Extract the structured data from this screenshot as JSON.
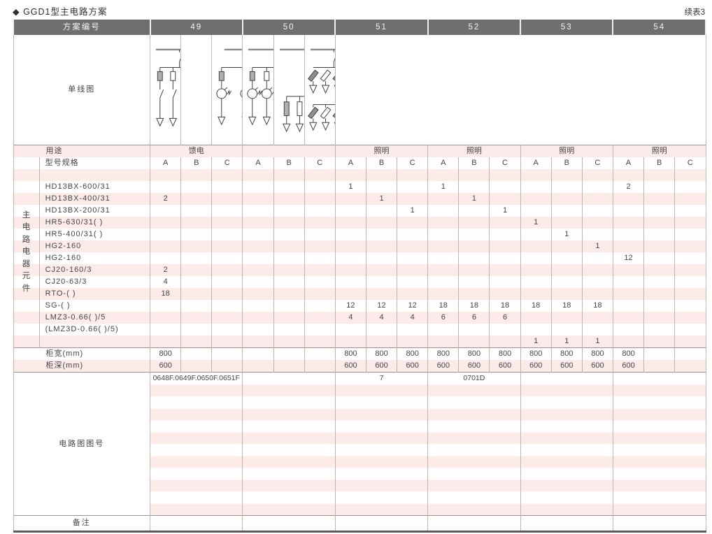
{
  "page": {
    "title": "◆ GGD1型主电路方案",
    "continuation": "续表3"
  },
  "table": {
    "scheme_header_label": "方案编号",
    "schemes": [
      "49",
      "50",
      "51",
      "52",
      "53",
      "54"
    ],
    "diagram_row_label": "单线图",
    "usage_label": "用途",
    "usage_values": [
      "馈电",
      "",
      "照明",
      "照明",
      "照明",
      "照明"
    ],
    "model_spec_label": "型号规格",
    "component_group_label": "主电路电器元件",
    "subcolumns": [
      "A",
      "B",
      "C"
    ],
    "component_rows": [
      {
        "name": "",
        "values": [
          "",
          "",
          "",
          "",
          "",
          "",
          "",
          "",
          "",
          "",
          "",
          "",
          "",
          "",
          "",
          "",
          "",
          ""
        ]
      },
      {
        "name": "HD13BX-600/31",
        "values": [
          "",
          "",
          "",
          "",
          "",
          "",
          "1",
          "",
          "",
          "1",
          "",
          "",
          "",
          "",
          "",
          "2",
          "",
          ""
        ]
      },
      {
        "name": "HD13BX-400/31",
        "values": [
          "2",
          "",
          "",
          "",
          "",
          "",
          "",
          "1",
          "",
          "",
          "1",
          "",
          "",
          "",
          "",
          "",
          "",
          ""
        ]
      },
      {
        "name": "HD13BX-200/31",
        "values": [
          "",
          "",
          "",
          "",
          "",
          "",
          "",
          "",
          "1",
          "",
          "",
          "1",
          "",
          "",
          "",
          "",
          "",
          ""
        ]
      },
      {
        "name": "HR5-630/31( )",
        "values": [
          "",
          "",
          "",
          "",
          "",
          "",
          "",
          "",
          "",
          "",
          "",
          "",
          "1",
          "",
          "",
          "",
          "",
          ""
        ]
      },
      {
        "name": "HR5-400/31( )",
        "values": [
          "",
          "",
          "",
          "",
          "",
          "",
          "",
          "",
          "",
          "",
          "",
          "",
          "",
          "1",
          "",
          "",
          "",
          ""
        ]
      },
      {
        "name": "HG2-160",
        "values": [
          "",
          "",
          "",
          "",
          "",
          "",
          "",
          "",
          "",
          "",
          "",
          "",
          "",
          "",
          "1",
          "",
          "",
          ""
        ]
      },
      {
        "name": "HG2-160",
        "values": [
          "",
          "",
          "",
          "",
          "",
          "",
          "",
          "",
          "",
          "",
          "",
          "",
          "",
          "",
          "",
          "12",
          "",
          ""
        ]
      },
      {
        "name": "CJ20-160/3",
        "values": [
          "2",
          "",
          "",
          "",
          "",
          "",
          "",
          "",
          "",
          "",
          "",
          "",
          "",
          "",
          "",
          "",
          "",
          ""
        ]
      },
      {
        "name": "CJ20-63/3",
        "values": [
          "4",
          "",
          "",
          "",
          "",
          "",
          "",
          "",
          "",
          "",
          "",
          "",
          "",
          "",
          "",
          "",
          "",
          ""
        ]
      },
      {
        "name": "RTO-( )",
        "values": [
          "18",
          "",
          "",
          "",
          "",
          "",
          "",
          "",
          "",
          "",
          "",
          "",
          "",
          "",
          "",
          "",
          "",
          ""
        ]
      },
      {
        "name": "SG-( )",
        "values": [
          "",
          "",
          "",
          "",
          "",
          "",
          "12",
          "12",
          "12",
          "18",
          "18",
          "18",
          "18",
          "18",
          "18",
          "",
          "",
          ""
        ]
      },
      {
        "name": "LMZ3-0.66( )/5",
        "values": [
          "",
          "",
          "",
          "",
          "",
          "",
          "4",
          "4",
          "4",
          "6",
          "6",
          "6",
          "",
          "",
          "",
          "",
          "",
          ""
        ]
      },
      {
        "name": "(LMZ3D-0.66( )/5)",
        "values": [
          "",
          "",
          "",
          "",
          "",
          "",
          "",
          "",
          "",
          "",
          "",
          "",
          "",
          "",
          "",
          "",
          "",
          ""
        ]
      },
      {
        "name": "",
        "values": [
          "",
          "",
          "",
          "",
          "",
          "",
          "",
          "",
          "",
          "",
          "",
          "",
          "1",
          "1",
          "1",
          "",
          "",
          ""
        ]
      }
    ],
    "cabinet_width": {
      "label": "柜宽(mm)",
      "values": [
        "800",
        "",
        "",
        "",
        "",
        "",
        "800",
        "800",
        "800",
        "800",
        "800",
        "800",
        "800",
        "800",
        "800",
        "800",
        "",
        ""
      ]
    },
    "cabinet_depth": {
      "label": "柜深(mm)",
      "values": [
        "600",
        "",
        "",
        "",
        "",
        "",
        "600",
        "600",
        "600",
        "600",
        "600",
        "600",
        "600",
        "600",
        "600",
        "600",
        "",
        ""
      ]
    },
    "drawing_numbers": {
      "label": "电路图图号",
      "values": [
        "0648F.0649F.0650F.0651F",
        "",
        "7",
        "0701D",
        "",
        ""
      ]
    },
    "remarks": {
      "label": "备注",
      "values": [
        "",
        "",
        "",
        "",
        "",
        ""
      ]
    },
    "diagrams": [
      {
        "scheme": "49",
        "feeders": 6,
        "groups": [
          4,
          2
        ],
        "tap": "switch",
        "branch_components": [
          "fuse",
          "switch",
          "arrow"
        ]
      },
      {
        "scheme": "50",
        "feeders": 0,
        "groups": [],
        "tap": "",
        "branch_components": []
      },
      {
        "scheme": "51",
        "feeders": 4,
        "groups": [
          4
        ],
        "tap": "switch",
        "branch_components": [
          "fuse",
          "meter",
          "arrow"
        ]
      },
      {
        "scheme": "52",
        "feeders": 6,
        "groups": [
          6
        ],
        "tap": "switch",
        "branch_components": [
          "fuse",
          "meter",
          "arrow"
        ]
      },
      {
        "scheme": "53",
        "feeders": 6,
        "groups": [
          6
        ],
        "tap": "fuse-switch+transformer",
        "branch_components": [
          "fuse",
          "arrow"
        ]
      },
      {
        "scheme": "54",
        "feeders": 12,
        "groups": [
          6,
          6
        ],
        "tap": "switch",
        "branch_components": [
          "tilted-fuse",
          "arrow"
        ]
      }
    ],
    "colors": {
      "stripe_pink": "#fcebe8",
      "header_gray": "#6f6f6f",
      "grid_line": "#bdb5b2"
    }
  }
}
